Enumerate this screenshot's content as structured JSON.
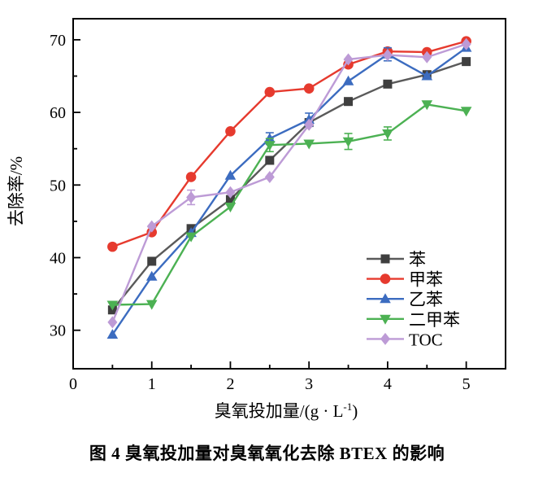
{
  "figure": {
    "caption": "图 4  臭氧投加量对臭氧氧化去除 BTEX 的影响"
  },
  "chart_data": {
    "type": "line",
    "title": "",
    "ylabel": "去除率/%",
    "xlabel_pre": "臭氧投加量/(g · L",
    "xlabel_sup": "-1",
    "xlabel_post": ")",
    "x": [
      0.5,
      1,
      1.5,
      2,
      2.5,
      3,
      3.5,
      4,
      4.5,
      5
    ],
    "xlim": [
      0,
      5.5
    ],
    "ylim": [
      24.7,
      72.9
    ],
    "x_major_ticks": [
      0,
      1,
      2,
      3,
      4,
      5
    ],
    "x_minor_ticks": [
      0.5,
      1.5,
      2.5,
      3.5,
      4.5
    ],
    "y_major_ticks": [
      30,
      40,
      50,
      60,
      70
    ],
    "y_minor_ticks": [
      35,
      45,
      55,
      65
    ],
    "grid": false,
    "legend_position": "inside-lower-right",
    "axis_color": "#000000",
    "background": "#ffffff",
    "series": [
      {
        "id": "benzene",
        "name": "苯",
        "marker": "square",
        "color": "#3f3f3f",
        "line_color": "#5a5a5a",
        "values": [
          32.8,
          39.5,
          44.0,
          48.0,
          53.4,
          58.6,
          61.5,
          63.9,
          65.2,
          67.0
        ],
        "errors": [
          null,
          null,
          null,
          null,
          null,
          null,
          null,
          null,
          null,
          null
        ]
      },
      {
        "id": "toluene",
        "name": "甲苯",
        "marker": "circle",
        "color": "#e63a2e",
        "line_color": "#e63a2e",
        "values": [
          41.5,
          43.5,
          51.1,
          57.4,
          62.8,
          63.3,
          66.6,
          68.4,
          68.3,
          69.8
        ],
        "errors": [
          null,
          null,
          null,
          null,
          null,
          null,
          null,
          null,
          null,
          null
        ]
      },
      {
        "id": "ethylbenzene",
        "name": "乙苯",
        "marker": "triangle-up",
        "color": "#3c6cc0",
        "line_color": "#3c6cc0",
        "values": [
          29.4,
          37.4,
          43.4,
          51.3,
          56.4,
          59.0,
          64.3,
          68.0,
          65.0,
          68.9
        ],
        "errors": [
          null,
          null,
          null,
          null,
          0.8,
          0.9,
          null,
          0.9,
          null,
          null
        ]
      },
      {
        "id": "xylene",
        "name": "二甲苯",
        "marker": "triangle-down",
        "color": "#4cb153",
        "line_color": "#4cb153",
        "values": [
          33.5,
          33.6,
          42.9,
          47.0,
          55.5,
          55.7,
          56.0,
          57.1,
          61.1,
          60.2
        ],
        "errors": [
          null,
          null,
          null,
          null,
          0.9,
          null,
          1.1,
          0.9,
          null,
          null
        ]
      },
      {
        "id": "toc",
        "name": "TOC",
        "marker": "diamond",
        "color": "#bd9bd6",
        "line_color": "#bd9bd6",
        "values": [
          31.1,
          44.3,
          48.3,
          49.0,
          51.1,
          58.3,
          67.3,
          67.9,
          67.6,
          69.4
        ],
        "errors": [
          null,
          null,
          1.0,
          null,
          null,
          null,
          null,
          null,
          null,
          null
        ]
      }
    ]
  }
}
